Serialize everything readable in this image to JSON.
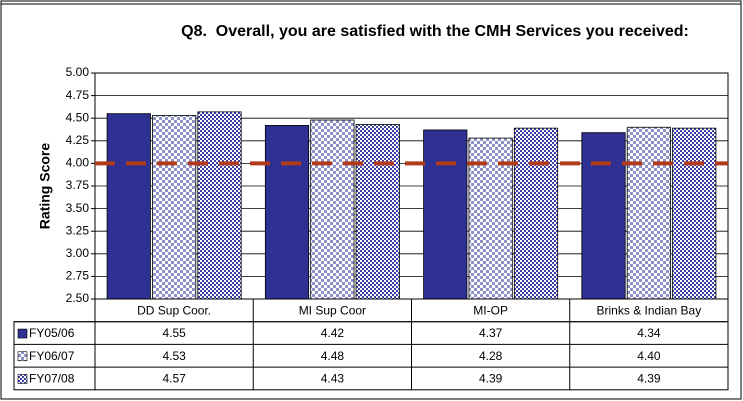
{
  "chart_data": {
    "type": "bar",
    "title": "Q8.  Overall, you are satisfied with the CMH Services you received:",
    "y_label": "Rating Score",
    "categories": [
      "DD Sup Coor.",
      "MI Sup Coor",
      "MI-OP",
      "Brinks & Indian Bay"
    ],
    "series": [
      {
        "name": "FY05/06",
        "color": "#2e3192",
        "pattern": "solid",
        "values": [
          4.55,
          4.42,
          4.37,
          4.34
        ]
      },
      {
        "name": "FY06/07",
        "color": "#8f93c8",
        "pattern": "light-check",
        "values": [
          4.53,
          4.48,
          4.28,
          4.4
        ],
        "value_labels": [
          "4.53",
          "4.48",
          "4.28",
          "4.40"
        ]
      },
      {
        "name": "FY07/08",
        "color": "#3b3fa6",
        "pattern": "dense-check",
        "values": [
          4.57,
          4.43,
          4.39,
          4.39
        ]
      }
    ],
    "ylim": [
      2.5,
      5
    ],
    "yticks": [
      {
        "value": 2.5,
        "label": "2.50"
      },
      {
        "value": 2.75,
        "label": "2.75"
      },
      {
        "value": 3,
        "label": "3.00"
      },
      {
        "value": 3.25,
        "label": "3.25"
      },
      {
        "value": 3.5,
        "label": "3.50"
      },
      {
        "value": 3.75,
        "label": "3.75"
      },
      {
        "value": 4,
        "label": "4.00"
      },
      {
        "value": 4.25,
        "label": "4.25"
      },
      {
        "value": 4.5,
        "label": "4.50"
      },
      {
        "value": 4.75,
        "label": "4.75"
      },
      {
        "value": 5,
        "label": "5.00"
      }
    ],
    "grid": true,
    "reference_line": {
      "value": 4,
      "color": "#b03a1a"
    },
    "data_table": true
  }
}
